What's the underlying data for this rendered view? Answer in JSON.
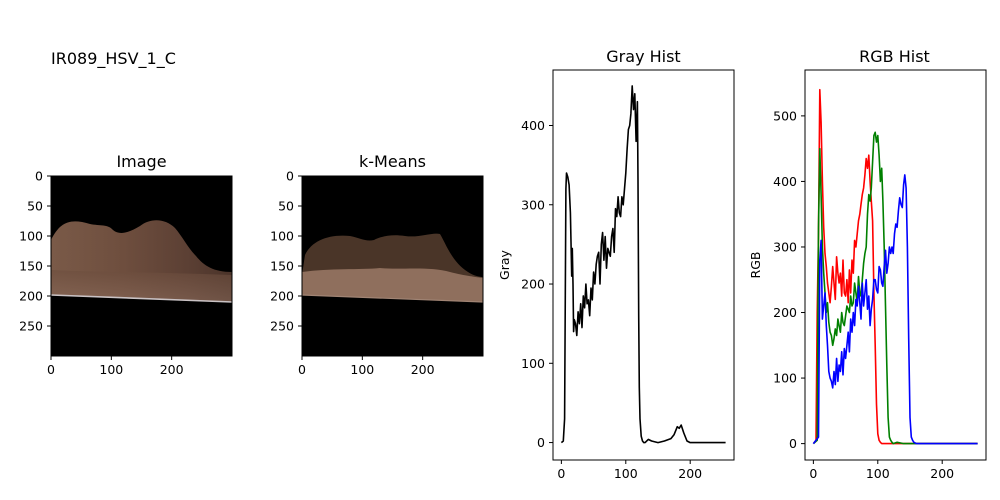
{
  "figure": {
    "title": "IR089_HSV_1_C"
  },
  "panels": [
    {
      "id": "image",
      "title": "Image",
      "xticks": [
        "0",
        "100",
        "200"
      ],
      "yticks": [
        "0",
        "50",
        "100",
        "150",
        "200",
        "250"
      ],
      "xlim": [
        0,
        300
      ],
      "ylim": [
        300,
        0
      ]
    },
    {
      "id": "kmeans",
      "title": "k-Means",
      "xticks": [
        "0",
        "100",
        "200"
      ],
      "yticks": [
        "0",
        "50",
        "100",
        "150",
        "200",
        "250"
      ],
      "xlim": [
        0,
        300
      ],
      "ylim": [
        300,
        0
      ]
    }
  ],
  "chart_data": [
    {
      "type": "line",
      "title": "Gray Hist",
      "xlabel": "",
      "ylabel": "Gray",
      "xlim": [
        -13,
        268
      ],
      "ylim": [
        -22,
        470
      ],
      "xticks": [
        0,
        100,
        200
      ],
      "yticks": [
        0,
        100,
        200,
        300,
        400
      ],
      "series": [
        {
          "color": "#000000",
          "x": [
            0,
            3,
            5,
            7,
            8,
            10,
            12,
            14,
            16,
            17,
            18,
            19,
            20,
            22,
            24,
            26,
            28,
            30,
            32,
            34,
            36,
            38,
            40,
            42,
            44,
            46,
            48,
            50,
            52,
            54,
            56,
            58,
            60,
            62,
            64,
            66,
            68,
            70,
            72,
            74,
            76,
            78,
            80,
            82,
            84,
            86,
            88,
            90,
            92,
            94,
            96,
            98,
            100,
            102,
            104,
            106,
            108,
            110,
            112,
            114,
            116,
            118,
            119,
            120,
            121,
            122,
            124,
            126,
            128,
            130,
            135,
            140,
            150,
            160,
            170,
            175,
            180,
            183,
            186,
            190,
            195,
            200,
            210,
            220,
            230,
            240,
            250,
            255
          ],
          "y": [
            0,
            2,
            30,
            320,
            340,
            335,
            325,
            290,
            210,
            245,
            200,
            140,
            155,
            150,
            135,
            165,
            150,
            175,
            145,
            185,
            170,
            200,
            175,
            180,
            160,
            195,
            180,
            215,
            200,
            225,
            235,
            240,
            200,
            250,
            265,
            230,
            260,
            220,
            245,
            240,
            235,
            260,
            270,
            240,
            295,
            285,
            310,
            290,
            285,
            310,
            300,
            320,
            340,
            370,
            395,
            400,
            415,
            450,
            420,
            440,
            380,
            430,
            330,
            160,
            70,
            30,
            8,
            2,
            0,
            0,
            4,
            2,
            0,
            2,
            5,
            10,
            20,
            18,
            22,
            12,
            2,
            0,
            0,
            0,
            0,
            0,
            0,
            0
          ]
        }
      ]
    },
    {
      "type": "line",
      "title": "RGB Hist",
      "xlabel": "",
      "ylabel": "RGB",
      "xlim": [
        -13,
        268
      ],
      "ylim": [
        -25,
        570
      ],
      "xticks": [
        0,
        100,
        200
      ],
      "yticks": [
        0,
        100,
        200,
        300,
        400,
        500
      ],
      "series": [
        {
          "color": "#ff0000",
          "x": [
            0,
            4,
            6,
            8,
            10,
            12,
            14,
            16,
            18,
            20,
            22,
            24,
            26,
            28,
            30,
            32,
            34,
            36,
            38,
            40,
            42,
            44,
            46,
            48,
            50,
            52,
            54,
            56,
            58,
            60,
            62,
            64,
            66,
            68,
            70,
            72,
            74,
            76,
            78,
            80,
            82,
            84,
            86,
            88,
            90,
            92,
            94,
            96,
            98,
            100,
            102,
            104,
            106,
            110,
            120,
            150,
            200,
            255
          ],
          "y": [
            0,
            5,
            200,
            320,
            540,
            490,
            400,
            330,
            290,
            270,
            245,
            230,
            215,
            240,
            270,
            245,
            220,
            285,
            260,
            245,
            260,
            225,
            280,
            230,
            225,
            250,
            215,
            265,
            230,
            280,
            260,
            310,
            300,
            320,
            340,
            350,
            365,
            380,
            390,
            410,
            435,
            420,
            440,
            400,
            370,
            340,
            230,
            150,
            60,
            15,
            5,
            2,
            0,
            0,
            0,
            0,
            0,
            0
          ]
        },
        {
          "color": "#008000",
          "x": [
            0,
            6,
            8,
            10,
            12,
            14,
            16,
            18,
            20,
            22,
            24,
            26,
            28,
            30,
            32,
            34,
            36,
            38,
            40,
            42,
            44,
            46,
            48,
            50,
            52,
            54,
            56,
            58,
            60,
            62,
            64,
            66,
            68,
            70,
            72,
            74,
            76,
            78,
            80,
            82,
            84,
            86,
            88,
            90,
            92,
            94,
            96,
            98,
            100,
            102,
            104,
            106,
            108,
            110,
            112,
            114,
            116,
            118,
            120,
            122,
            124,
            130,
            140,
            150,
            200,
            255
          ],
          "y": [
            0,
            5,
            330,
            450,
            380,
            300,
            260,
            230,
            200,
            215,
            185,
            170,
            165,
            150,
            160,
            175,
            165,
            190,
            180,
            170,
            200,
            185,
            180,
            195,
            210,
            205,
            200,
            225,
            210,
            215,
            245,
            230,
            215,
            255,
            230,
            225,
            250,
            275,
            290,
            300,
            350,
            380,
            370,
            390,
            430,
            470,
            475,
            460,
            470,
            440,
            400,
            420,
            370,
            300,
            210,
            120,
            40,
            10,
            5,
            2,
            0,
            2,
            0,
            0,
            0,
            0
          ]
        },
        {
          "color": "#0000ff",
          "x": [
            0,
            8,
            10,
            12,
            14,
            16,
            18,
            20,
            22,
            24,
            26,
            28,
            30,
            32,
            34,
            36,
            38,
            40,
            42,
            44,
            46,
            48,
            50,
            52,
            54,
            56,
            58,
            60,
            62,
            64,
            66,
            68,
            70,
            72,
            74,
            76,
            78,
            80,
            82,
            84,
            86,
            88,
            90,
            92,
            94,
            96,
            98,
            100,
            102,
            104,
            106,
            108,
            110,
            112,
            114,
            116,
            118,
            120,
            122,
            124,
            126,
            128,
            130,
            132,
            134,
            136,
            138,
            140,
            142,
            144,
            146,
            148,
            150,
            152,
            154,
            156,
            160,
            170,
            200,
            255
          ],
          "y": [
            0,
            10,
            280,
            310,
            190,
            210,
            230,
            180,
            150,
            110,
            100,
            95,
            85,
            110,
            90,
            130,
            95,
            120,
            110,
            140,
            105,
            145,
            130,
            150,
            170,
            140,
            190,
            170,
            200,
            180,
            220,
            210,
            240,
            215,
            190,
            245,
            210,
            230,
            250,
            205,
            225,
            180,
            205,
            220,
            250,
            250,
            235,
            230,
            270,
            265,
            245,
            240,
            270,
            295,
            260,
            275,
            300,
            290,
            300,
            290,
            320,
            335,
            330,
            355,
            375,
            365,
            360,
            395,
            410,
            390,
            300,
            160,
            40,
            10,
            5,
            2,
            0,
            0,
            0,
            0
          ]
        }
      ]
    }
  ]
}
